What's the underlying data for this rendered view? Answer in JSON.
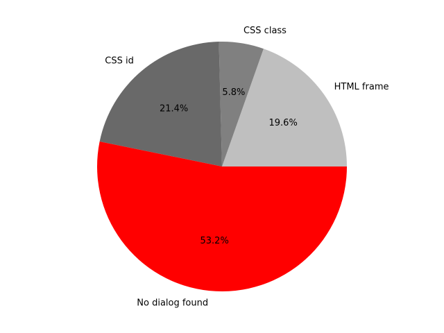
{
  "chart_data": {
    "type": "pie",
    "title": "",
    "categories": [
      "HTML frame",
      "CSS class",
      "CSS id",
      "No dialog found"
    ],
    "values": [
      19.6,
      5.8,
      21.4,
      53.2
    ],
    "percent_labels": [
      "19.6%",
      "5.8%",
      "21.4%",
      "53.2%"
    ],
    "colors": [
      "#bfbfbf",
      "#808080",
      "#696969",
      "#ff0000"
    ],
    "start_angle_deg": 0,
    "direction": "counterclockwise",
    "legend": "none"
  }
}
